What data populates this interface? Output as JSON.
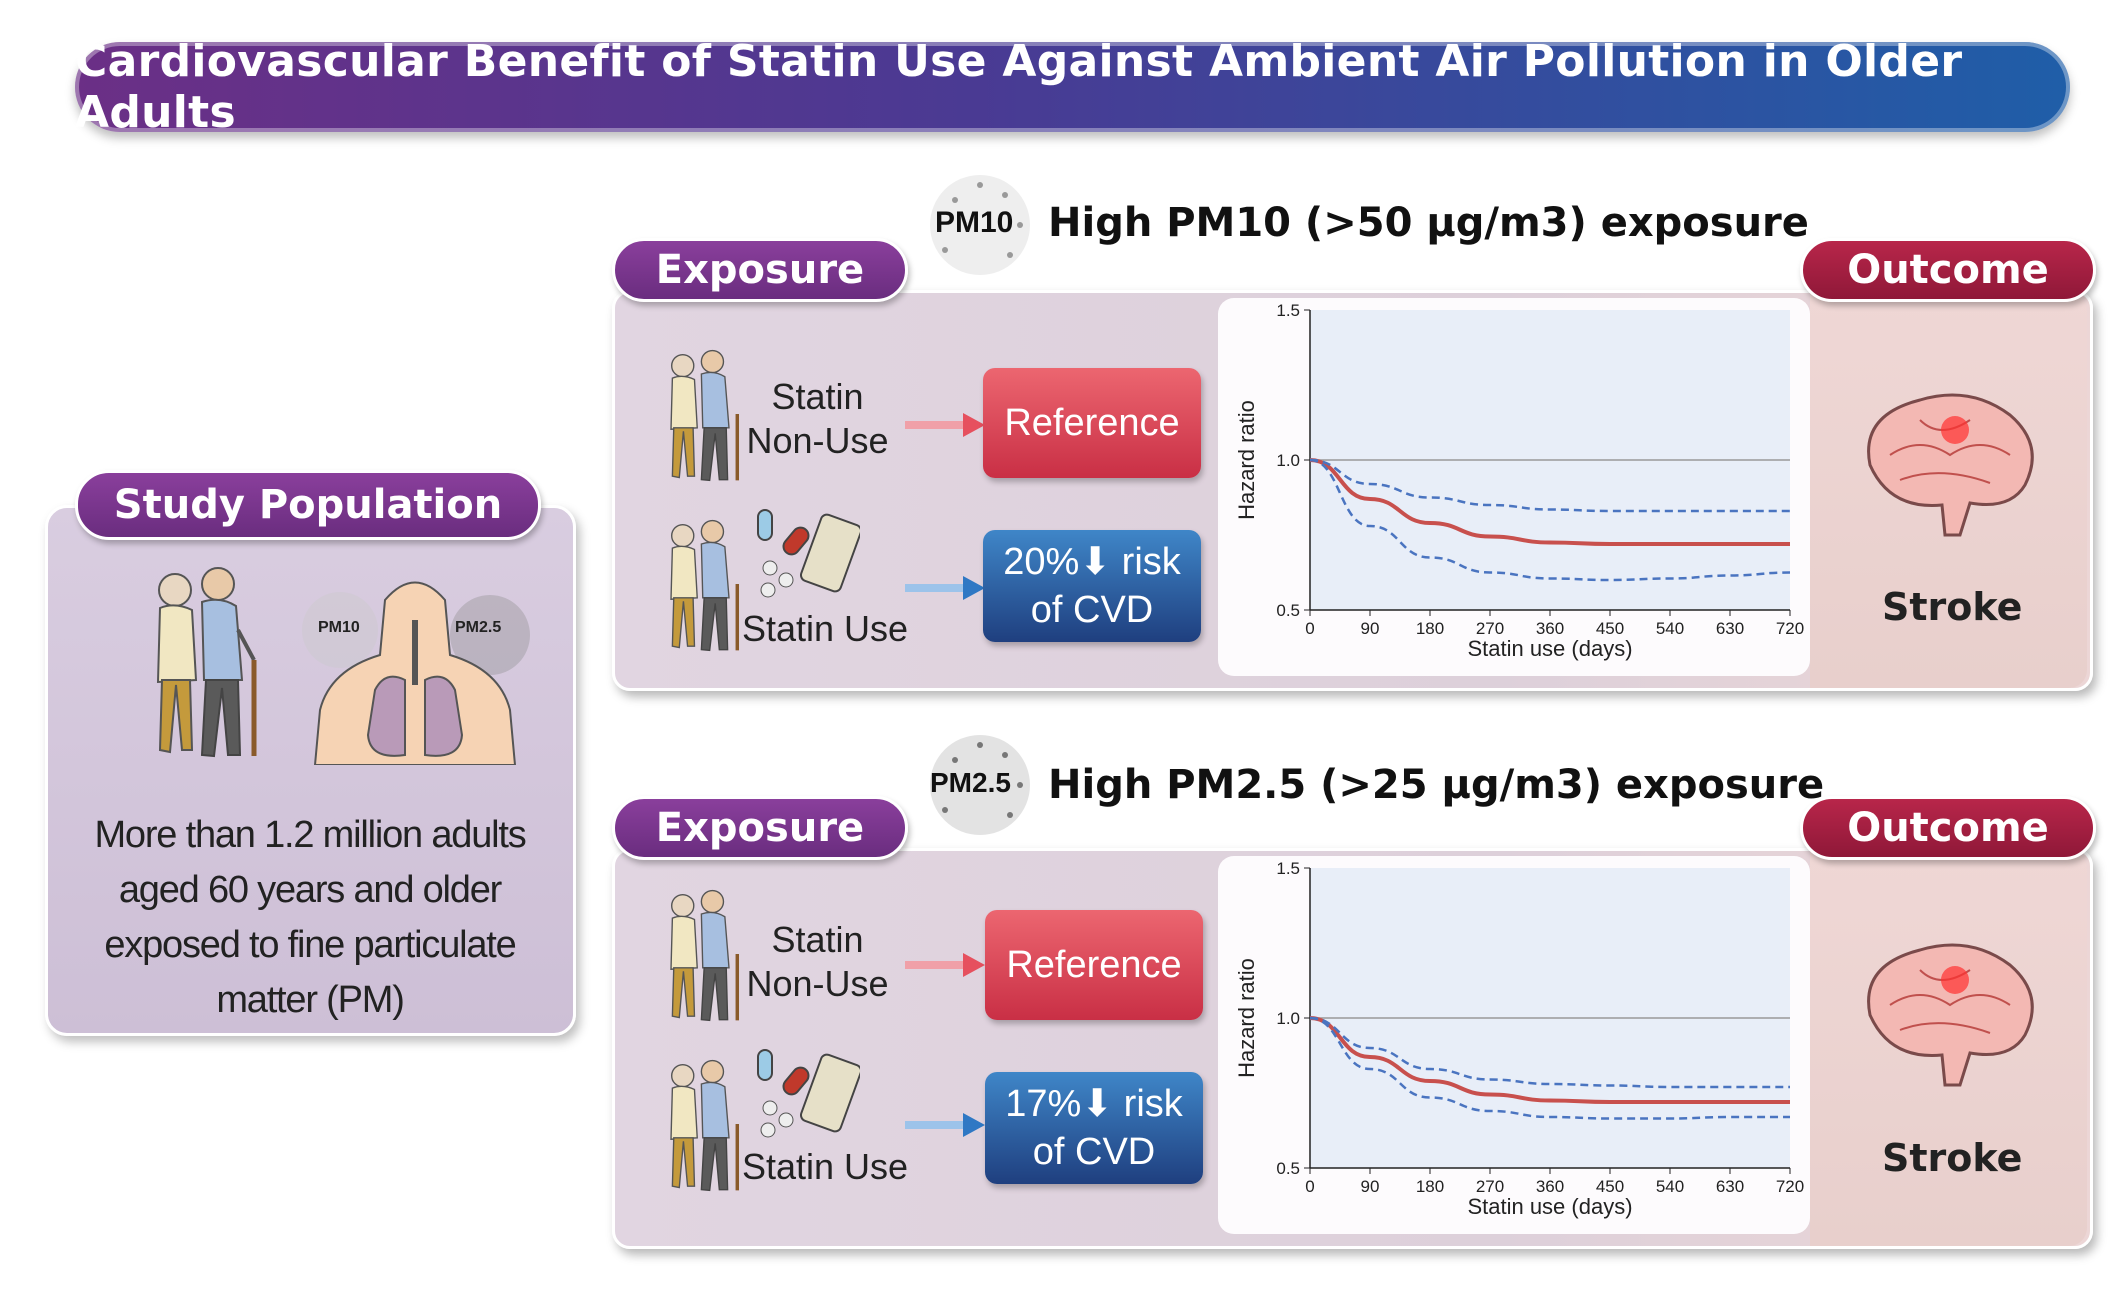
{
  "title": "Cardiovascular Benefit of Statin Use Against Ambient Air Pollution in Older Adults",
  "study_population": {
    "heading": "Study Population",
    "pm10_label": "PM10",
    "pm25_label": "PM2.5",
    "description": "More than 1.2 million adults aged 60 years and older exposed to fine particulate matter (PM)"
  },
  "panels": [
    {
      "badge": "PM10",
      "header": "High PM10 (>50 μg/m3) exposure",
      "exposure_label": "Exposure",
      "outcome_label": "Outcome",
      "nonuse_label": "Statin Non-Use",
      "use_label": "Statin Use",
      "reference_label": "Reference",
      "risk_label": "20%⬇ risk of CVD",
      "outcome_text": "Stroke"
    },
    {
      "badge": "PM2.5",
      "header": "High PM2.5 (>25 μg/m3) exposure",
      "exposure_label": "Exposure",
      "outcome_label": "Outcome",
      "nonuse_label": "Statin Non-Use",
      "use_label": "Statin Use",
      "reference_label": "Reference",
      "risk_label": "17%⬇ risk of CVD",
      "outcome_text": "Stroke"
    }
  ],
  "colors": {
    "estimate": "#c8504d",
    "ci": "#4a74c0",
    "plot_bg": "#e8eef8",
    "purple": "#6a2d7f",
    "red": "#9a1b3c"
  },
  "chart_data": [
    {
      "type": "line",
      "xlabel": "Statin use (days)",
      "ylabel": "Hazard ratio",
      "x": [
        0,
        90,
        180,
        270,
        360,
        450,
        540,
        630,
        720
      ],
      "xlim": [
        0,
        720
      ],
      "ylim": [
        0.5,
        1.5
      ],
      "yticks": [
        0.5,
        1.0,
        1.5
      ],
      "reference_line": 1.0,
      "series": [
        {
          "style": "solid",
          "values": [
            1.0,
            0.87,
            0.79,
            0.745,
            0.725,
            0.72,
            0.72,
            0.72,
            0.72
          ]
        },
        {
          "style": "dashed",
          "values": [
            1.0,
            0.92,
            0.875,
            0.85,
            0.835,
            0.83,
            0.83,
            0.83,
            0.83
          ]
        },
        {
          "style": "dashed",
          "values": [
            1.0,
            0.78,
            0.675,
            0.625,
            0.605,
            0.6,
            0.605,
            0.615,
            0.625
          ]
        }
      ]
    },
    {
      "type": "line",
      "xlabel": "Statin use (days)",
      "ylabel": "Hazard ratio",
      "x": [
        0,
        90,
        180,
        270,
        360,
        450,
        540,
        630,
        720
      ],
      "xlim": [
        0,
        720
      ],
      "ylim": [
        0.5,
        1.5
      ],
      "yticks": [
        0.5,
        1.0,
        1.5
      ],
      "reference_line": 1.0,
      "series": [
        {
          "style": "solid",
          "values": [
            1.0,
            0.87,
            0.79,
            0.745,
            0.725,
            0.72,
            0.72,
            0.72,
            0.72
          ]
        },
        {
          "style": "dashed",
          "values": [
            1.0,
            0.9,
            0.83,
            0.795,
            0.78,
            0.775,
            0.77,
            0.77,
            0.77
          ]
        },
        {
          "style": "dashed",
          "values": [
            1.0,
            0.83,
            0.735,
            0.69,
            0.67,
            0.665,
            0.665,
            0.67,
            0.67
          ]
        }
      ]
    }
  ]
}
